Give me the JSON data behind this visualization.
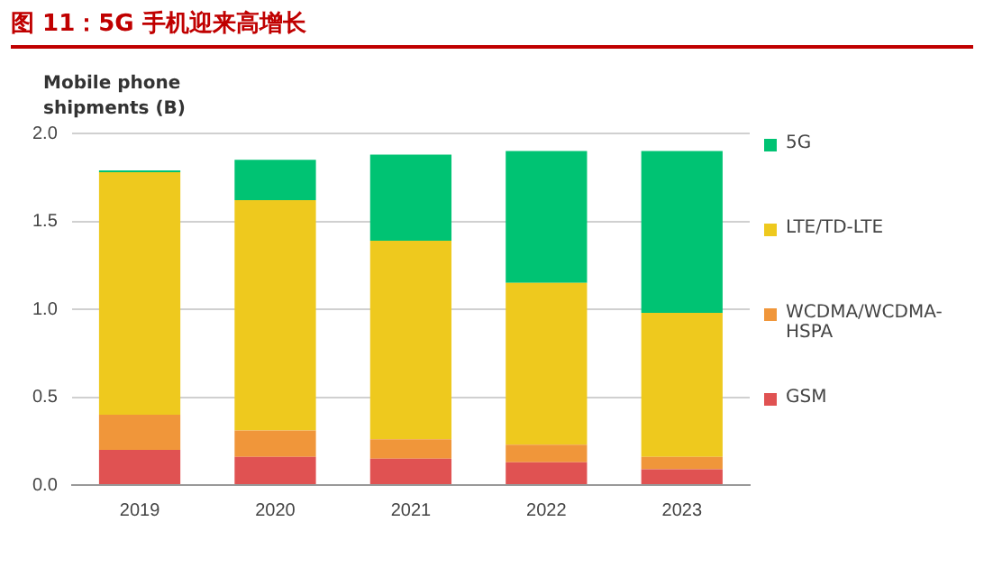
{
  "chart_data": {
    "type": "bar",
    "title": "图 11：5G 手机迎来高增长",
    "ylabel": "Mobile phone shipments (B)",
    "categories": [
      "2019",
      "2020",
      "2021",
      "2022",
      "2023"
    ],
    "stacked": true,
    "ylim": [
      0,
      2.0
    ],
    "yticks": [
      {
        "value": 0,
        "label": "0.0"
      },
      {
        "value": 0.5,
        "label": "0.5"
      },
      {
        "value": 1,
        "label": "1.0"
      },
      {
        "value": 1.5,
        "label": "1.5"
      },
      {
        "value": 2,
        "label": "2.0"
      }
    ],
    "grid": "y",
    "legend": "right",
    "series": [
      {
        "name": "GSM",
        "color": "#e05252",
        "values": [
          0.2,
          0.16,
          0.15,
          0.13,
          0.09
        ]
      },
      {
        "name": "WCDMA/WCDMA-HSPA",
        "color": "#f0963a",
        "values": [
          0.2,
          0.15,
          0.11,
          0.1,
          0.07
        ]
      },
      {
        "name": "LTE/TD-LTE",
        "color": "#eec91e",
        "values": [
          1.38,
          1.31,
          1.13,
          0.92,
          0.82
        ]
      },
      {
        "name": "5G",
        "color": "#00c373",
        "values": [
          0.01,
          0.23,
          0.49,
          0.75,
          0.92
        ]
      }
    ]
  }
}
